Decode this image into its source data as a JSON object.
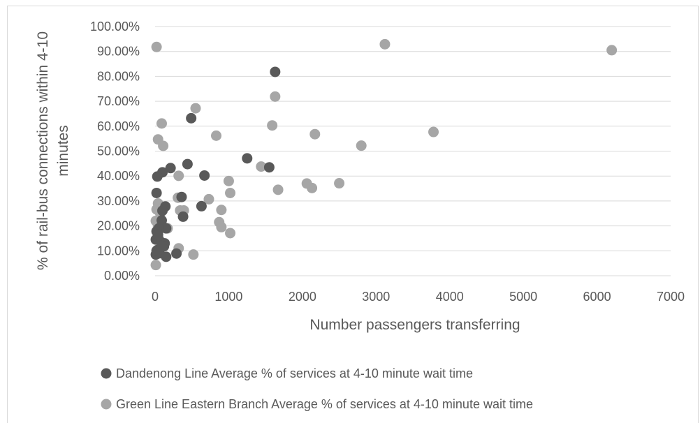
{
  "chart_data": {
    "type": "scatter",
    "xlabel": "Number passengers transferring",
    "ylabel_lines": [
      "% of rail-bus connections within 4-10",
      "minutes"
    ],
    "xlim": [
      0,
      7000
    ],
    "ylim": [
      0,
      1
    ],
    "x_ticks": [
      0,
      1000,
      2000,
      3000,
      4000,
      5000,
      6000,
      7000
    ],
    "x_tick_labels": [
      "0",
      "1000",
      "2000",
      "3000",
      "4000",
      "5000",
      "6000",
      "7000"
    ],
    "y_ticks": [
      0,
      0.1,
      0.2,
      0.3,
      0.4,
      0.5,
      0.6,
      0.7,
      0.8,
      0.9,
      1.0
    ],
    "y_tick_labels": [
      "0.00%",
      "10.00%",
      "20.00%",
      "30.00%",
      "40.00%",
      "50.00%",
      "60.00%",
      "70.00%",
      "80.00%",
      "90.00%",
      "100.00%"
    ],
    "grid": "horizontal",
    "legend_position": "bottom",
    "series": [
      {
        "name": "Dandenong Line Average % of services at 4-10 minute wait time",
        "color": "#595959",
        "points": [
          [
            1630,
            0.818
          ],
          [
            490,
            0.632
          ],
          [
            1250,
            0.471
          ],
          [
            1550,
            0.435
          ],
          [
            440,
            0.448
          ],
          [
            670,
            0.402
          ],
          [
            100,
            0.415
          ],
          [
            210,
            0.432
          ],
          [
            30,
            0.398
          ],
          [
            20,
            0.332
          ],
          [
            360,
            0.316
          ],
          [
            380,
            0.237
          ],
          [
            630,
            0.279
          ],
          [
            140,
            0.278
          ],
          [
            100,
            0.261
          ],
          [
            90,
            0.222
          ],
          [
            150,
            0.19
          ],
          [
            50,
            0.19
          ],
          [
            20,
            0.178
          ],
          [
            40,
            0.155
          ],
          [
            10,
            0.145
          ],
          [
            80,
            0.135
          ],
          [
            130,
            0.13
          ],
          [
            120,
            0.118
          ],
          [
            30,
            0.103
          ],
          [
            60,
            0.09
          ],
          [
            10,
            0.085
          ],
          [
            150,
            0.076
          ],
          [
            290,
            0.089
          ],
          [
            20,
            0.1
          ],
          [
            90,
            0.12
          ],
          [
            40,
            0.165
          ]
        ]
      },
      {
        "name": "Green Line Eastern Branch Average % of services at 4-10 minute wait time",
        "color": "#a6a6a6",
        "points": [
          [
            6200,
            0.905
          ],
          [
            3120,
            0.929
          ],
          [
            20,
            0.918
          ],
          [
            1630,
            0.719
          ],
          [
            550,
            0.672
          ],
          [
            90,
            0.611
          ],
          [
            1590,
            0.603
          ],
          [
            830,
            0.562
          ],
          [
            2170,
            0.568
          ],
          [
            3780,
            0.577
          ],
          [
            40,
            0.547
          ],
          [
            110,
            0.521
          ],
          [
            2800,
            0.522
          ],
          [
            1440,
            0.438
          ],
          [
            320,
            0.401
          ],
          [
            1000,
            0.38
          ],
          [
            2060,
            0.37
          ],
          [
            2130,
            0.352
          ],
          [
            2500,
            0.371
          ],
          [
            1670,
            0.345
          ],
          [
            1020,
            0.332
          ],
          [
            730,
            0.307
          ],
          [
            310,
            0.313
          ],
          [
            20,
            0.266
          ],
          [
            60,
            0.282
          ],
          [
            100,
            0.268
          ],
          [
            340,
            0.262
          ],
          [
            390,
            0.262
          ],
          [
            900,
            0.264
          ],
          [
            870,
            0.215
          ],
          [
            900,
            0.195
          ],
          [
            1020,
            0.171
          ],
          [
            10,
            0.22
          ],
          [
            80,
            0.21
          ],
          [
            130,
            0.193
          ],
          [
            170,
            0.19
          ],
          [
            40,
            0.29
          ],
          [
            320,
            0.11
          ],
          [
            520,
            0.085
          ],
          [
            10,
            0.043
          ],
          [
            70,
            0.25
          ],
          [
            40,
            0.2
          ]
        ]
      }
    ]
  }
}
